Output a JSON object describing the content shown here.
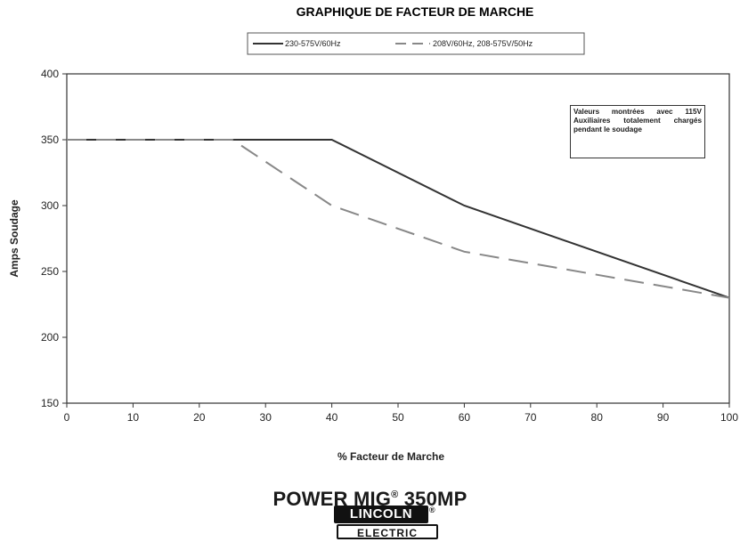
{
  "chart_data": {
    "type": "line",
    "title": "GRAPHIQUE DE FACTEUR DE MARCHE",
    "xlabel": "% Facteur de Marche",
    "ylabel": "Amps Soudage",
    "xlim": [
      0,
      100
    ],
    "ylim": [
      150,
      400
    ],
    "x_ticks": [
      0,
      10,
      20,
      30,
      40,
      50,
      60,
      70,
      80,
      90,
      100
    ],
    "y_ticks": [
      150,
      200,
      250,
      300,
      350,
      400
    ],
    "grid": false,
    "legend_position": "top",
    "series": [
      {
        "name": "230-575V/60Hz",
        "style": "solid",
        "color": "#333333",
        "x": [
          0,
          40,
          60,
          100
        ],
        "y": [
          350,
          350,
          300,
          230
        ]
      },
      {
        "name": "208V/60Hz, 208-575V/50Hz",
        "style": "dashed",
        "color": "#888888",
        "x": [
          0,
          25,
          40,
          60,
          100
        ],
        "y": [
          350,
          350,
          300,
          265,
          230
        ]
      }
    ],
    "annotation": "Valeurs montrées avec 115V Auxiliaires totalement chargés pendant le soudage"
  },
  "footer": {
    "product_name": "POWER MIG",
    "product_reg": "®",
    "product_model": "350MP",
    "logo_top": "LINCOLN",
    "logo_reg": "®",
    "logo_bottom": "ELECTRIC"
  }
}
